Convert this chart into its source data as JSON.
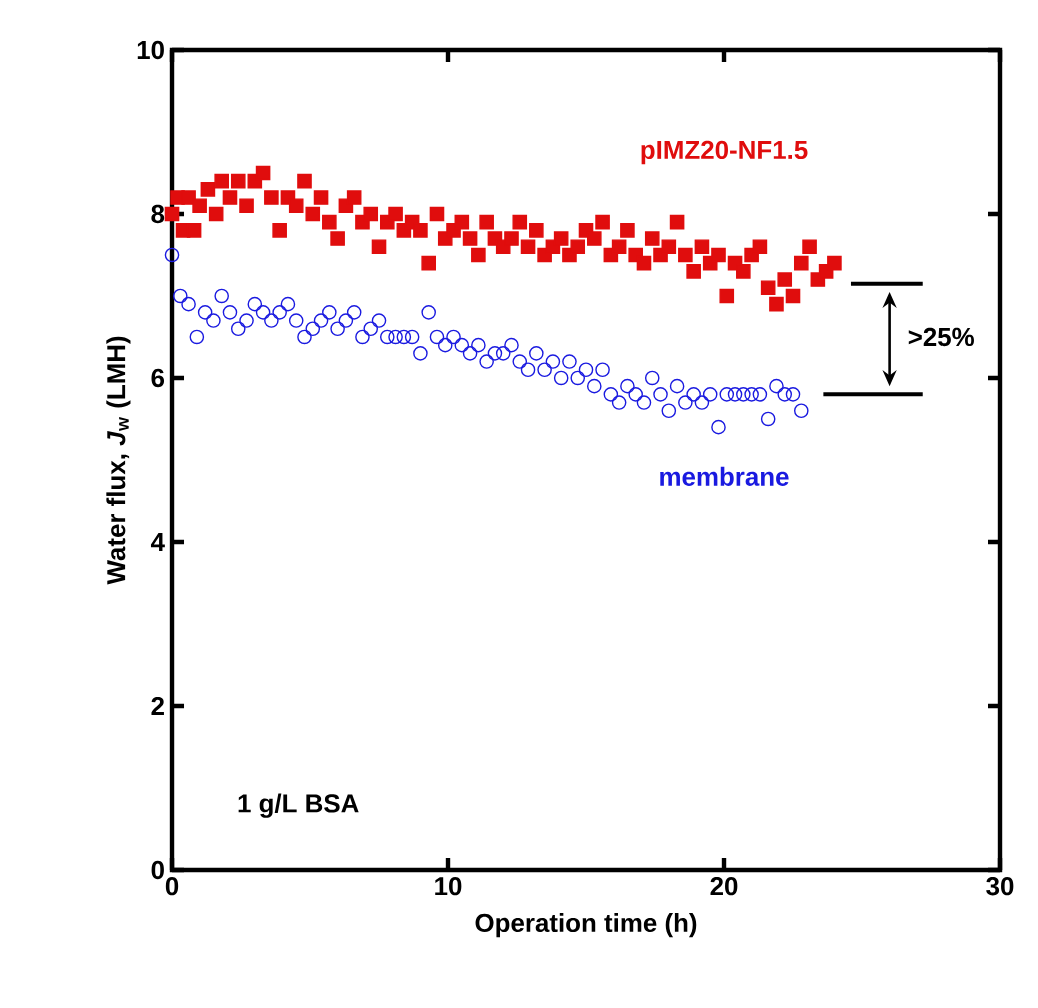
{
  "chart_data": {
    "type": "scatter",
    "xlabel": "Operation time (h)",
    "ylabel": "Water flux, *J*$_{w}$ (LMH)",
    "xlim": [
      0,
      30
    ],
    "ylim": [
      0,
      10
    ],
    "xticks": [
      0,
      10,
      20,
      30
    ],
    "yticks": [
      0,
      2,
      4,
      6,
      8,
      10
    ],
    "grid": false,
    "legend": false,
    "annotations": [
      "1 g/L BSA",
      ">25%"
    ],
    "ref_lines": [
      {
        "axis": "y",
        "value": 7.15
      },
      {
        "axis": "y",
        "value": 5.8
      }
    ],
    "series": [
      {
        "name": "pIMZ20-NF1.5",
        "color": "#e00d0d",
        "marker": "square",
        "x": [
          0,
          0.2,
          0.4,
          0.6,
          0.8,
          1.0,
          1.3,
          1.6,
          1.8,
          2.1,
          2.4,
          2.7,
          3.0,
          3.3,
          3.6,
          3.9,
          4.2,
          4.5,
          4.8,
          5.1,
          5.4,
          5.7,
          6.0,
          6.3,
          6.6,
          6.9,
          7.2,
          7.5,
          7.8,
          8.1,
          8.4,
          8.7,
          9.0,
          9.3,
          9.6,
          9.9,
          10.2,
          10.5,
          10.8,
          11.1,
          11.4,
          11.7,
          12.0,
          12.3,
          12.6,
          12.9,
          13.2,
          13.5,
          13.8,
          14.1,
          14.4,
          14.7,
          15.0,
          15.3,
          15.6,
          15.9,
          16.2,
          16.5,
          16.8,
          17.1,
          17.4,
          17.7,
          18.0,
          18.3,
          18.6,
          18.9,
          19.2,
          19.5,
          19.8,
          20.1,
          20.4,
          20.7,
          21.0,
          21.3,
          21.6,
          21.9,
          22.2,
          22.5,
          22.8,
          23.1,
          23.4,
          23.7,
          24.0
        ],
        "values": [
          8.0,
          8.2,
          7.8,
          8.2,
          7.8,
          8.1,
          8.3,
          8.0,
          8.4,
          8.2,
          8.4,
          8.1,
          8.4,
          8.5,
          8.2,
          7.8,
          8.2,
          8.1,
          8.4,
          8.0,
          8.2,
          7.9,
          7.7,
          8.1,
          8.2,
          7.9,
          8.0,
          7.6,
          7.9,
          8.0,
          7.8,
          7.9,
          7.8,
          7.4,
          8.0,
          7.7,
          7.8,
          7.9,
          7.7,
          7.5,
          7.9,
          7.7,
          7.6,
          7.7,
          7.9,
          7.6,
          7.8,
          7.5,
          7.6,
          7.7,
          7.5,
          7.6,
          7.8,
          7.7,
          7.9,
          7.5,
          7.6,
          7.8,
          7.5,
          7.4,
          7.7,
          7.5,
          7.6,
          7.9,
          7.5,
          7.3,
          7.6,
          7.4,
          7.5,
          7.0,
          7.4,
          7.3,
          7.5,
          7.6,
          7.1,
          6.9,
          7.2,
          7.0,
          7.4,
          7.6,
          7.2,
          7.3,
          7.4
        ]
      },
      {
        "name": "membrane",
        "color": "#1a1ae0",
        "marker": "circle",
        "x": [
          0,
          0.3,
          0.6,
          0.9,
          1.2,
          1.5,
          1.8,
          2.1,
          2.4,
          2.7,
          3.0,
          3.3,
          3.6,
          3.9,
          4.2,
          4.5,
          4.8,
          5.1,
          5.4,
          5.7,
          6.0,
          6.3,
          6.6,
          6.9,
          7.2,
          7.5,
          7.8,
          8.1,
          8.4,
          8.7,
          9.0,
          9.3,
          9.6,
          9.9,
          10.2,
          10.5,
          10.8,
          11.1,
          11.4,
          11.7,
          12.0,
          12.3,
          12.6,
          12.9,
          13.2,
          13.5,
          13.8,
          14.1,
          14.4,
          14.7,
          15.0,
          15.3,
          15.6,
          15.9,
          16.2,
          16.5,
          16.8,
          17.1,
          17.4,
          17.7,
          18.0,
          18.3,
          18.6,
          18.9,
          19.2,
          19.5,
          19.8,
          20.1,
          20.4,
          20.7,
          21.0,
          21.3,
          21.6,
          21.9,
          22.2,
          22.5,
          22.8
        ],
        "values": [
          7.5,
          7.0,
          6.9,
          6.5,
          6.8,
          6.7,
          7.0,
          6.8,
          6.6,
          6.7,
          6.9,
          6.8,
          6.7,
          6.8,
          6.9,
          6.7,
          6.5,
          6.6,
          6.7,
          6.8,
          6.6,
          6.7,
          6.8,
          6.5,
          6.6,
          6.7,
          6.5,
          6.5,
          6.5,
          6.5,
          6.3,
          6.8,
          6.5,
          6.4,
          6.5,
          6.4,
          6.3,
          6.4,
          6.2,
          6.3,
          6.3,
          6.4,
          6.2,
          6.1,
          6.3,
          6.1,
          6.2,
          6.0,
          6.2,
          6.0,
          6.1,
          5.9,
          6.1,
          5.8,
          5.7,
          5.9,
          5.8,
          5.7,
          6.0,
          5.8,
          5.6,
          5.9,
          5.7,
          5.8,
          5.7,
          5.8,
          5.4,
          5.8,
          5.8,
          5.8,
          5.8,
          5.8,
          5.5,
          5.9,
          5.8,
          5.8,
          5.6
        ]
      }
    ]
  }
}
